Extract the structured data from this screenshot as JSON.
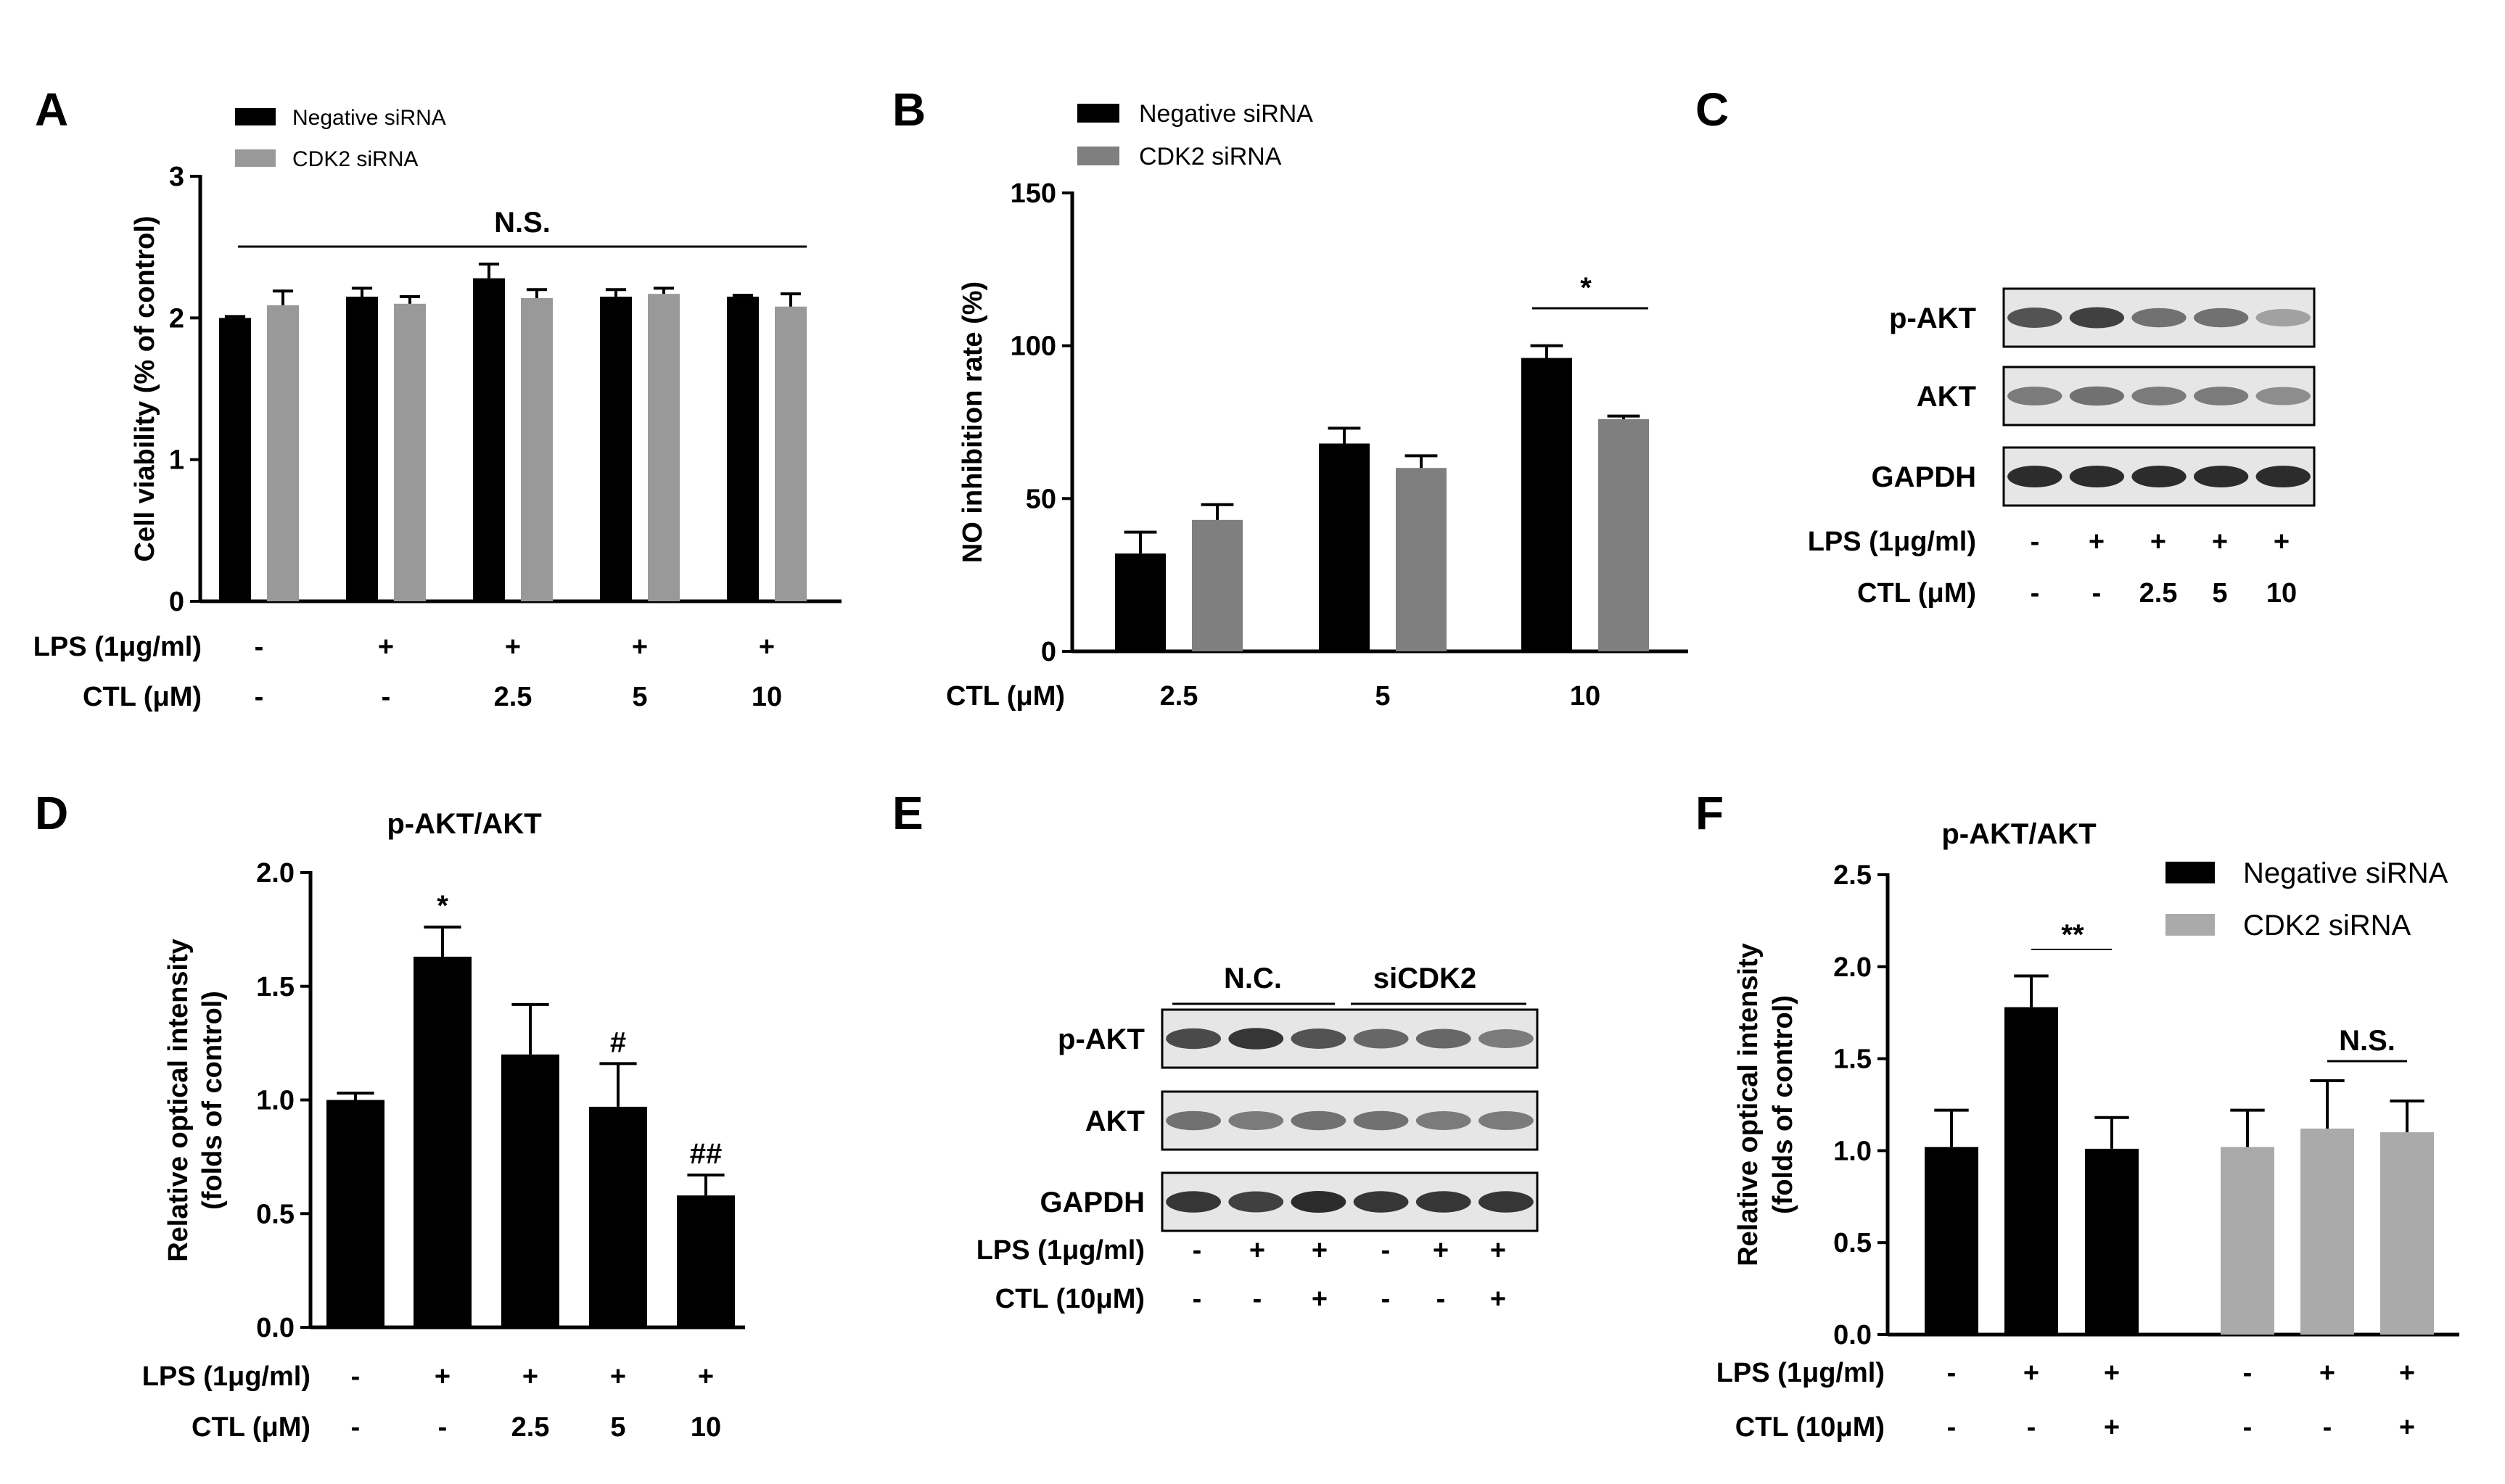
{
  "chart_data": [
    {
      "id": "A",
      "type": "bar",
      "panel_label": "A",
      "ylabel": "Cell viability (% of control)",
      "ylim": [
        0,
        3
      ],
      "yticks": [
        "0",
        "1",
        "2",
        "3"
      ],
      "groups": 5,
      "series": [
        {
          "name": "Negative siRNA",
          "color": "#000000",
          "values": [
            2.0,
            2.15,
            2.28,
            2.15,
            2.15
          ],
          "errors": [
            0.01,
            0.06,
            0.1,
            0.05,
            0.01
          ]
        },
        {
          "name": "CDK2 siRNA",
          "color": "#999999",
          "values": [
            2.09,
            2.1,
            2.14,
            2.17,
            2.08
          ],
          "errors": [
            0.1,
            0.05,
            0.06,
            0.04,
            0.09
          ]
        }
      ],
      "row_labels": [
        "LPS (1μg/ml)",
        "CTL (μM)"
      ],
      "conditions": [
        [
          "-",
          "+",
          "+",
          "+",
          "+"
        ],
        [
          "-",
          "-",
          "2.5",
          "5",
          "10"
        ]
      ],
      "annotation": "N.S."
    },
    {
      "id": "B",
      "type": "bar",
      "panel_label": "B",
      "ylabel": "NO inhibition rate (%)",
      "ylim": [
        0,
        150
      ],
      "yticks": [
        "0",
        "50",
        "100",
        "150"
      ],
      "xlabel": "CTL (μM)",
      "categories": [
        "2.5",
        "5",
        "10"
      ],
      "series": [
        {
          "name": "Negative siRNA",
          "color": "#000000",
          "values": [
            32,
            68,
            96
          ],
          "errors": [
            7,
            5,
            4
          ]
        },
        {
          "name": "CDK2 siRNA",
          "color": "#7f7f7f",
          "values": [
            43,
            60,
            76
          ],
          "errors": [
            5,
            4,
            1
          ]
        }
      ],
      "annotation": "*"
    },
    {
      "id": "D",
      "type": "bar",
      "panel_label": "D",
      "title": "p-AKT/AKT",
      "ylabel_lines": [
        "Relative optical intensity",
        "(folds of control)"
      ],
      "ylim": [
        0,
        2.0
      ],
      "yticks": [
        "0.0",
        "0.5",
        "1.0",
        "1.5",
        "2.0"
      ],
      "series": [
        {
          "name": "p-AKT/AKT",
          "color": "#000000",
          "values": [
            1.0,
            1.63,
            1.2,
            0.97,
            0.58
          ],
          "errors": [
            0.03,
            0.13,
            0.22,
            0.19,
            0.09
          ]
        }
      ],
      "marks": [
        "",
        "*",
        "",
        "#",
        "##"
      ],
      "row_labels": [
        "LPS (1μg/ml)",
        "CTL (μM)"
      ],
      "conditions": [
        [
          "-",
          "+",
          "+",
          "+",
          "+"
        ],
        [
          "-",
          "-",
          "2.5",
          "5",
          "10"
        ]
      ]
    },
    {
      "id": "F",
      "type": "bar",
      "panel_label": "F",
      "title": "p-AKT/AKT",
      "ylabel_lines": [
        "Relative optical intensity",
        "(folds of control)"
      ],
      "ylim": [
        0,
        2.5
      ],
      "yticks": [
        "0.0",
        "0.5",
        "1.0",
        "1.5",
        "2.0",
        "2.5"
      ],
      "series": [
        {
          "name": "Negative siRNA",
          "color": "#000000",
          "values": [
            1.02,
            1.78,
            1.01
          ],
          "errors": [
            0.2,
            0.17,
            0.17
          ]
        },
        {
          "name": "CDK2 siRNA",
          "color": "#aaaaaa",
          "values": [
            1.02,
            1.12,
            1.1
          ],
          "errors": [
            0.2,
            0.26,
            0.17
          ]
        }
      ],
      "row_labels": [
        "LPS (1μg/ml)",
        "CTL (10μM)"
      ],
      "conditions": [
        [
          "-",
          "+",
          "+",
          "-",
          "+",
          "+"
        ],
        [
          "-",
          "-",
          "+",
          "-",
          "-",
          "+"
        ]
      ],
      "annotations": [
        "**",
        "N.S."
      ]
    }
  ],
  "blots": {
    "C": {
      "panel_label": "C",
      "rows": [
        "p-AKT",
        "AKT",
        "GAPDH"
      ],
      "intensities": [
        [
          0.75,
          0.85,
          0.6,
          0.6,
          0.35
        ],
        [
          0.55,
          0.6,
          0.55,
          0.55,
          0.45
        ],
        [
          0.95,
          0.95,
          0.95,
          0.95,
          0.95
        ]
      ],
      "row_labels": [
        "LPS (1μg/ml)",
        "CTL (μM)"
      ],
      "conditions": [
        [
          "-",
          "+",
          "+",
          "+",
          "+"
        ],
        [
          "-",
          "-",
          "2.5",
          "5",
          "10"
        ]
      ]
    },
    "E": {
      "panel_label": "E",
      "groups": [
        "N.C.",
        "siCDK2"
      ],
      "rows": [
        "p-AKT",
        "AKT",
        "GAPDH"
      ],
      "intensities": [
        [
          0.8,
          0.9,
          0.75,
          0.65,
          0.65,
          0.55
        ],
        [
          0.6,
          0.55,
          0.6,
          0.6,
          0.55,
          0.55
        ],
        [
          0.9,
          0.85,
          0.95,
          0.9,
          0.9,
          0.9
        ]
      ],
      "row_labels": [
        "LPS (1μg/ml)",
        "CTL (10μM)"
      ],
      "conditions": [
        [
          "-",
          "+",
          "+",
          "-",
          "+",
          "+"
        ],
        [
          "-",
          "-",
          "+",
          "-",
          "-",
          "+"
        ]
      ]
    }
  }
}
